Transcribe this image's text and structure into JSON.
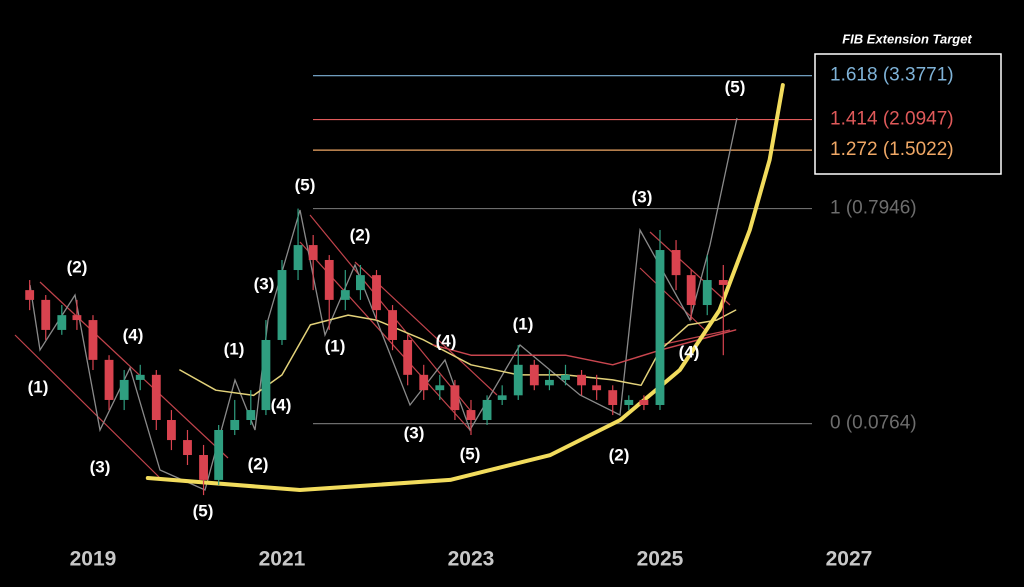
{
  "chart_data": {
    "type": "candlestick",
    "log_y": true,
    "xlim": [
      2018.016,
      2028.852
    ],
    "ylim": [
      0.024,
      7.7
    ],
    "xticks": [
      2019,
      2021,
      2023,
      2025,
      2027
    ],
    "up_color": "#2f9e80",
    "down_color": "#d9434f",
    "x": [
      2018.33,
      2018.5,
      2018.67,
      2018.83,
      2019.0,
      2019.17,
      2019.33,
      2019.5,
      2019.67,
      2019.83,
      2020.0,
      2020.17,
      2020.33,
      2020.5,
      2020.67,
      2020.83,
      2021.0,
      2021.17,
      2021.33,
      2021.5,
      2021.67,
      2021.83,
      2022.0,
      2022.17,
      2022.33,
      2022.5,
      2022.67,
      2022.83,
      2023.0,
      2023.17,
      2023.33,
      2023.5,
      2023.67,
      2023.83,
      2024.0,
      2024.17,
      2024.33,
      2024.5,
      2024.67,
      2024.83,
      2025.0,
      2025.17,
      2025.33,
      2025.5,
      2025.67
    ],
    "open": [
      0.327,
      0.294,
      0.212,
      0.249,
      0.236,
      0.153,
      0.0989,
      0.123,
      0.13,
      0.0795,
      0.0639,
      0.0543,
      0.0414,
      0.0713,
      0.0795,
      0.0886,
      0.19,
      0.407,
      0.534,
      0.454,
      0.294,
      0.327,
      0.385,
      0.263,
      0.19,
      0.13,
      0.11,
      0.116,
      0.0886,
      0.0795,
      0.0989,
      0.104,
      0.145,
      0.116,
      0.123,
      0.13,
      0.116,
      0.11,
      0.0936,
      0.0989,
      0.0936,
      0.506,
      0.385,
      0.278,
      0.365
    ],
    "high": [
      0.365,
      0.31,
      0.278,
      0.294,
      0.249,
      0.161,
      0.137,
      0.145,
      0.137,
      0.0886,
      0.0713,
      0.0606,
      0.0753,
      0.0989,
      0.11,
      0.236,
      0.454,
      0.7946,
      0.596,
      0.479,
      0.407,
      0.43,
      0.407,
      0.278,
      0.201,
      0.145,
      0.13,
      0.123,
      0.0989,
      0.104,
      0.116,
      0.18,
      0.153,
      0.137,
      0.145,
      0.137,
      0.13,
      0.116,
      0.104,
      0.104,
      0.629,
      0.564,
      0.407,
      0.479,
      0.43
    ],
    "low": [
      0.263,
      0.19,
      0.201,
      0.212,
      0.137,
      0.0886,
      0.0886,
      0.11,
      0.0713,
      0.0573,
      0.0487,
      0.0351,
      0.0392,
      0.0675,
      0.0753,
      0.0839,
      0.18,
      0.365,
      0.327,
      0.212,
      0.263,
      0.294,
      0.236,
      0.17,
      0.116,
      0.0989,
      0.0989,
      0.0795,
      0.0675,
      0.0753,
      0.0936,
      0.0989,
      0.11,
      0.11,
      0.116,
      0.104,
      0.0989,
      0.0839,
      0.0886,
      0.0886,
      0.0886,
      0.327,
      0.236,
      0.249,
      0.161
    ],
    "close": [
      0.294,
      0.212,
      0.249,
      0.236,
      0.153,
      0.0989,
      0.123,
      0.13,
      0.0795,
      0.0639,
      0.0543,
      0.0414,
      0.0713,
      0.0795,
      0.0886,
      0.19,
      0.407,
      0.534,
      0.454,
      0.294,
      0.327,
      0.385,
      0.263,
      0.19,
      0.13,
      0.11,
      0.116,
      0.0886,
      0.0795,
      0.0989,
      0.104,
      0.145,
      0.116,
      0.123,
      0.13,
      0.116,
      0.11,
      0.0936,
      0.0989,
      0.0936,
      0.506,
      0.385,
      0.278,
      0.365,
      0.346
    ],
    "overlays": [
      {
        "color": "#e3d27a",
        "width": 1.5,
        "x": [
          2019.92,
          2020.3,
          2020.7,
          2021.0,
          2021.3,
          2021.7,
          2022.0,
          2022.5,
          2023.0,
          2023.5,
          2024.0,
          2024.5,
          2024.8,
          2025.0,
          2025.3,
          2025.6,
          2025.8
        ],
        "values": [
          0.137,
          0.11,
          0.104,
          0.13,
          0.224,
          0.249,
          0.236,
          0.19,
          0.145,
          0.13,
          0.13,
          0.123,
          0.116,
          0.17,
          0.224,
          0.236,
          0.263
        ]
      },
      {
        "color": "#c9464f",
        "width": 1.5,
        "x": [
          2022.6,
          2023.0,
          2023.5,
          2024.0,
          2024.5,
          2025.0,
          2025.4,
          2025.8
        ],
        "values": [
          0.18,
          0.161,
          0.161,
          0.161,
          0.145,
          0.17,
          0.19,
          0.212
        ]
      },
      {
        "color": "#f2dc5d",
        "width": 4,
        "x": [
          2019.58,
          2021.19,
          2022.78,
          2023.84,
          2024.58,
          2025.21,
          2025.63,
          2025.95,
          2026.16,
          2026.3
        ],
        "values": [
          0.0423,
          0.0371,
          0.0414,
          0.0543,
          0.0795,
          0.137,
          0.263,
          0.629,
          1.349,
          3.05
        ]
      }
    ],
    "fib_title": "FIB Extension Target",
    "fib_levels": [
      {
        "value": 3.3771,
        "label": "1.618 (3.3771)",
        "color": "#7fb3d8",
        "boxed": true
      },
      {
        "value": 2.0947,
        "label": "1.414 (2.0947)",
        "color": "#e05a5a",
        "boxed": true
      },
      {
        "value": 1.5022,
        "label": "1.272 (1.5022)",
        "color": "#f0a866",
        "boxed": true
      },
      {
        "value": 0.7946,
        "label": "1 (0.7946)",
        "color": "#6d6d6d",
        "boxed": false
      },
      {
        "value": 0.0764,
        "label": "0 (0.0764)",
        "color": "#6d6d6d",
        "boxed": false
      }
    ],
    "wave_labels": [
      "(2)",
      "(4)",
      "(1)",
      "(3)",
      "(5)",
      "(1)",
      "(3)",
      "(4)",
      "(2)",
      "(5)",
      "(2)",
      "(1)",
      "(4)",
      "(3)",
      "(5)",
      "(1)",
      "(3)",
      "(2)",
      "(4)",
      "(5)"
    ]
  }
}
